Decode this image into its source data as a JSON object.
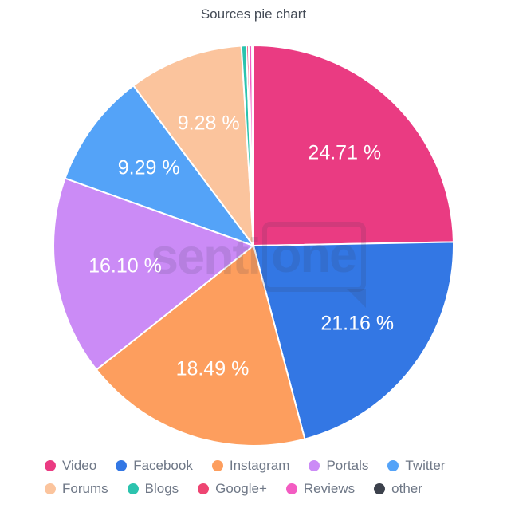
{
  "title": "Sources pie chart",
  "background_color": "#ffffff",
  "watermark": {
    "text_left": "senti",
    "text_bubble": "one"
  },
  "chart_data": {
    "type": "pie",
    "title": "Sources pie chart",
    "direction": "clockwise",
    "start_angle": "top",
    "legend_position": "bottom",
    "slice_border_color": "#ffffff",
    "label_color": "#ffffff",
    "legend_text_color": "#6f7887",
    "series": [
      {
        "label": "Video",
        "value": 24.71,
        "display": "24.71 %",
        "color": "#ea3b82"
      },
      {
        "label": "Facebook",
        "value": 21.16,
        "display": "21.16 %",
        "color": "#3377e4"
      },
      {
        "label": "Instagram",
        "value": 18.49,
        "display": "18.49 %",
        "color": "#fd9e5e"
      },
      {
        "label": "Portals",
        "value": 16.1,
        "display": "16.10 %",
        "color": "#cb8bf6"
      },
      {
        "label": "Twitter",
        "value": 9.29,
        "display": "9.29 %",
        "color": "#54a3f8"
      },
      {
        "label": "Forums",
        "value": 9.28,
        "display": "9.28 %",
        "color": "#fbc49d"
      },
      {
        "label": "Blogs",
        "value": 0.4,
        "display": "",
        "color": "#2cc3ae"
      },
      {
        "label": "Google+",
        "value": 0.18,
        "display": "",
        "color": "#ee4572"
      },
      {
        "label": "Reviews",
        "value": 0.27,
        "display": "",
        "color": "#f35cc2"
      },
      {
        "label": "other",
        "value": 0.12,
        "display": "",
        "color": "#3c414c"
      }
    ]
  }
}
